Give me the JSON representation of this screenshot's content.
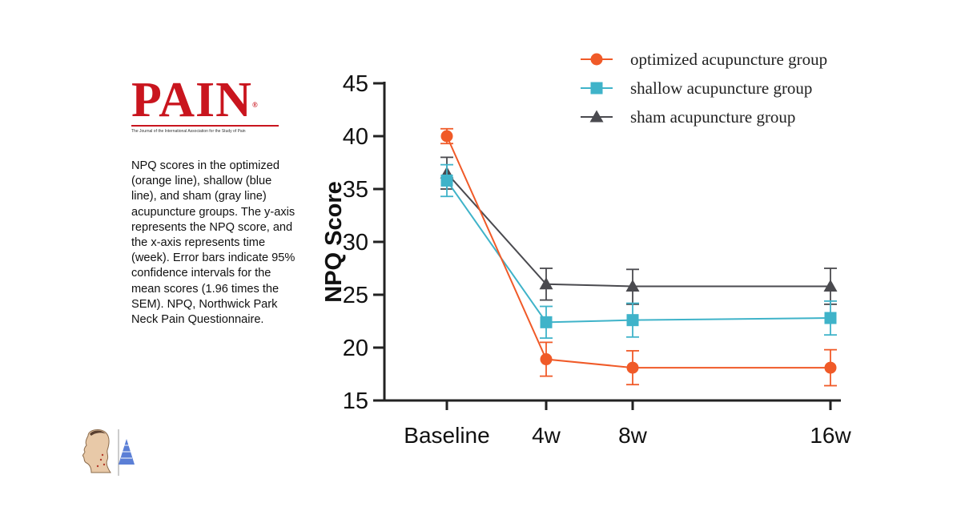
{
  "journal": {
    "name": "PAIN",
    "registered_mark": "®",
    "tagline": "The Journal of the International Association for the Study of Pain"
  },
  "caption": "NPQ scores in the optimized (orange line), shallow (blue line), and sham (gray line) acupuncture groups. The y-axis represents the NPQ score, and the x-axis represents time (week). Error bars indicate 95% confidence intervals for the mean scores (1.96 times the SEM). NPQ, Northwick Park Neck Pain Questionnaire.",
  "icons": {
    "figure": "head-anatomy-icon"
  },
  "chart_data": {
    "type": "line",
    "title": "",
    "xlabel": "",
    "ylabel": "NPQ Score",
    "ylim": [
      15,
      45
    ],
    "yticks": [
      15,
      20,
      25,
      30,
      35,
      40,
      45
    ],
    "categories": [
      "Baseline",
      "4w",
      "8w",
      "16w"
    ],
    "x": [
      0,
      4,
      8,
      16
    ],
    "legend_position": "top-right",
    "series": [
      {
        "name": "optimized acupuncture group",
        "color": "#f05a28",
        "marker": "circle",
        "values": [
          40.0,
          18.9,
          18.1,
          18.1
        ],
        "ci_low": [
          39.3,
          17.3,
          16.5,
          16.4
        ],
        "ci_high": [
          40.7,
          20.5,
          19.7,
          19.8
        ]
      },
      {
        "name": "shallow acupuncture group",
        "color": "#3fb3c9",
        "marker": "square",
        "values": [
          35.8,
          22.4,
          22.6,
          22.8
        ],
        "ci_low": [
          34.3,
          20.9,
          21.0,
          21.2
        ],
        "ci_high": [
          37.3,
          23.9,
          24.2,
          24.4
        ]
      },
      {
        "name": "sham acupuncture group",
        "color": "#4a4a4f",
        "marker": "triangle",
        "values": [
          36.5,
          26.0,
          25.8,
          25.8
        ],
        "ci_low": [
          35.0,
          24.5,
          24.1,
          24.1
        ],
        "ci_high": [
          38.0,
          27.5,
          27.4,
          27.5
        ]
      }
    ]
  }
}
